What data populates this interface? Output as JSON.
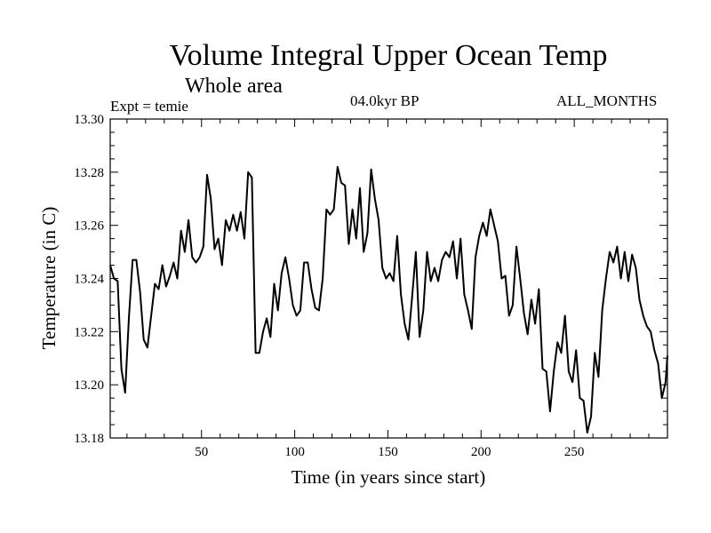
{
  "chart_data": {
    "type": "line",
    "title": "Volume Integral Upper Ocean Temp",
    "subtitle": "Whole area",
    "annotations": {
      "experiment": "Expt = temie",
      "period": "04.0kyr BP",
      "months": "ALL_MONTHS"
    },
    "xlabel": "Time (in years since start)",
    "ylabel": "Temperature (in C)",
    "xlim": [
      1,
      300
    ],
    "ylim": [
      13.18,
      13.3
    ],
    "xticks": [
      50,
      100,
      150,
      200,
      250
    ],
    "yticks": [
      13.18,
      13.2,
      13.22,
      13.24,
      13.26,
      13.28,
      13.3
    ],
    "ytick_labels": [
      "13.18",
      "13.20",
      "13.22",
      "13.24",
      "13.26",
      "13.28",
      "13.30"
    ],
    "grid": false,
    "series": [
      {
        "name": "temperature",
        "x": [
          1,
          3,
          5,
          7,
          9,
          11,
          13,
          15,
          17,
          19,
          21,
          23,
          25,
          27,
          29,
          31,
          33,
          35,
          37,
          39,
          41,
          43,
          45,
          47,
          49,
          51,
          53,
          55,
          57,
          59,
          61,
          63,
          65,
          67,
          69,
          71,
          73,
          75,
          77,
          79,
          81,
          83,
          85,
          87,
          89,
          91,
          93,
          95,
          97,
          99,
          101,
          103,
          105,
          107,
          109,
          111,
          113,
          115,
          117,
          119,
          121,
          123,
          125,
          127,
          129,
          131,
          133,
          135,
          137,
          139,
          141,
          143,
          145,
          147,
          149,
          151,
          153,
          155,
          157,
          159,
          161,
          163,
          165,
          167,
          169,
          171,
          173,
          175,
          177,
          179,
          181,
          183,
          185,
          187,
          189,
          191,
          193,
          195,
          197,
          199,
          201,
          203,
          205,
          207,
          209,
          211,
          213,
          215,
          217,
          219,
          221,
          223,
          225,
          227,
          229,
          231,
          233,
          235,
          237,
          239,
          241,
          243,
          245,
          247,
          249,
          251,
          253,
          255,
          257,
          259,
          261,
          263,
          265,
          267,
          269,
          271,
          273,
          275,
          277,
          279,
          281,
          283,
          285,
          287,
          289,
          291,
          293,
          295,
          297,
          299,
          300
        ],
        "values": [
          13.245,
          13.24,
          13.239,
          13.206,
          13.197,
          13.225,
          13.247,
          13.247,
          13.235,
          13.217,
          13.214,
          13.226,
          13.238,
          13.236,
          13.245,
          13.237,
          13.241,
          13.246,
          13.24,
          13.258,
          13.25,
          13.262,
          13.248,
          13.246,
          13.248,
          13.252,
          13.279,
          13.27,
          13.251,
          13.255,
          13.245,
          13.262,
          13.258,
          13.264,
          13.258,
          13.265,
          13.255,
          13.28,
          13.278,
          13.212,
          13.212,
          13.22,
          13.225,
          13.218,
          13.238,
          13.228,
          13.242,
          13.248,
          13.24,
          13.23,
          13.226,
          13.228,
          13.246,
          13.246,
          13.236,
          13.229,
          13.228,
          13.24,
          13.266,
          13.264,
          13.266,
          13.282,
          13.276,
          13.275,
          13.253,
          13.266,
          13.255,
          13.274,
          13.25,
          13.257,
          13.281,
          13.27,
          13.262,
          13.244,
          13.24,
          13.242,
          13.239,
          13.256,
          13.234,
          13.223,
          13.217,
          13.233,
          13.25,
          13.218,
          13.228,
          13.25,
          13.239,
          13.244,
          13.239,
          13.247,
          13.25,
          13.248,
          13.254,
          13.24,
          13.255,
          13.234,
          13.228,
          13.221,
          13.248,
          13.256,
          13.261,
          13.256,
          13.266,
          13.26,
          13.254,
          13.24,
          13.241,
          13.226,
          13.23,
          13.252,
          13.24,
          13.227,
          13.219,
          13.232,
          13.223,
          13.236,
          13.206,
          13.205,
          13.19,
          13.205,
          13.216,
          13.212,
          13.226,
          13.205,
          13.201,
          13.213,
          13.195,
          13.194,
          13.182,
          13.188,
          13.212,
          13.203,
          13.228,
          13.24,
          13.25,
          13.246,
          13.252,
          13.24,
          13.25,
          13.239,
          13.249,
          13.244,
          13.232,
          13.226,
          13.222,
          13.22,
          13.213,
          13.208,
          13.195,
          13.201,
          13.211
        ]
      }
    ]
  }
}
